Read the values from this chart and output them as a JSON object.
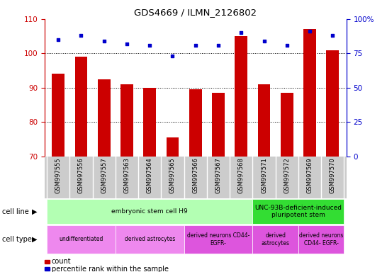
{
  "title": "GDS4669 / ILMN_2126802",
  "samples": [
    "GSM997555",
    "GSM997556",
    "GSM997557",
    "GSM997563",
    "GSM997564",
    "GSM997565",
    "GSM997566",
    "GSM997567",
    "GSM997568",
    "GSM997571",
    "GSM997572",
    "GSM997569",
    "GSM997570"
  ],
  "counts": [
    94.0,
    99.0,
    92.5,
    91.0,
    90.0,
    75.5,
    89.5,
    88.5,
    105.0,
    91.0,
    88.5,
    107.0,
    101.0
  ],
  "percentiles": [
    85,
    88,
    84,
    82,
    81,
    73,
    81,
    81,
    90,
    84,
    81,
    91,
    88
  ],
  "ylim_left": [
    70,
    110
  ],
  "ylim_right": [
    0,
    100
  ],
  "bar_color": "#cc0000",
  "dot_color": "#0000cc",
  "left_tick_color": "#cc0000",
  "right_tick_color": "#0000cc",
  "cell_line_groups": [
    {
      "label": "embryonic stem cell H9",
      "start": 0,
      "end": 9,
      "color": "#b3ffb3"
    },
    {
      "label": "UNC-93B-deficient-induced\npluripotent stem",
      "start": 9,
      "end": 13,
      "color": "#33dd33"
    }
  ],
  "cell_type_groups": [
    {
      "label": "undifferentiated",
      "start": 0,
      "end": 3,
      "color": "#ee88ee"
    },
    {
      "label": "derived astrocytes",
      "start": 3,
      "end": 6,
      "color": "#ee88ee"
    },
    {
      "label": "derived neurons CD44-\nEGFR-",
      "start": 6,
      "end": 9,
      "color": "#dd55dd"
    },
    {
      "label": "derived\nastrocytes",
      "start": 9,
      "end": 11,
      "color": "#dd55dd"
    },
    {
      "label": "derived neurons\nCD44- EGFR-",
      "start": 11,
      "end": 13,
      "color": "#dd55dd"
    }
  ],
  "xlabel_bg": "#cccccc",
  "legend_items": [
    {
      "label": "count",
      "color": "#cc0000"
    },
    {
      "label": "percentile rank within the sample",
      "color": "#0000cc"
    }
  ]
}
